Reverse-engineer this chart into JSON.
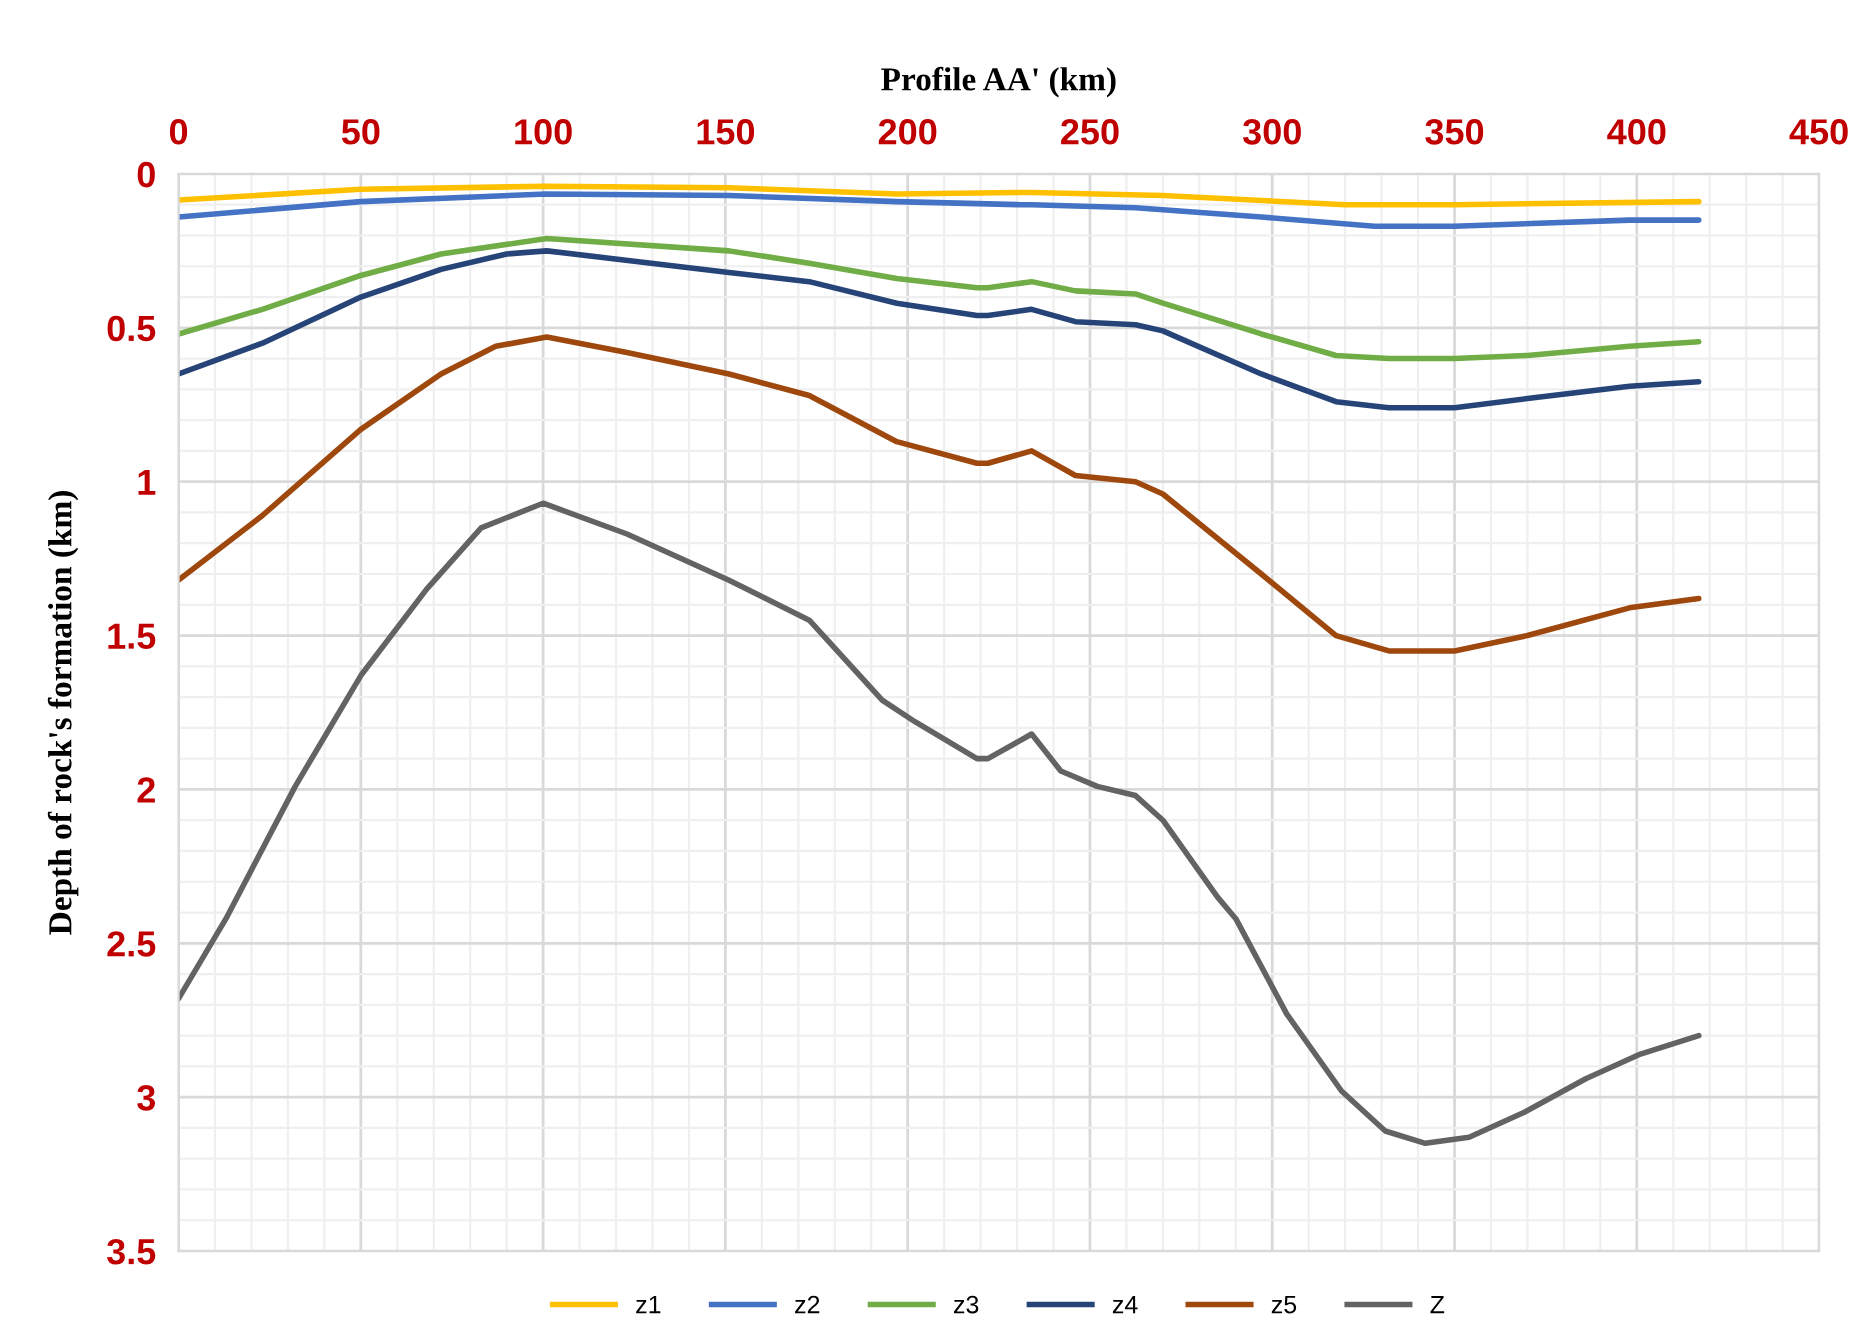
{
  "chart_data": {
    "type": "line",
    "xlabel": "Profile AA' (km)",
    "ylabel": "Depth of rock's formation (km)",
    "xlim": [
      0,
      450
    ],
    "xticks": [
      0,
      50,
      100,
      150,
      200,
      250,
      300,
      350,
      400,
      450
    ],
    "ylim": [
      3.5,
      0
    ],
    "yticks": [
      0,
      0.5,
      1,
      1.5,
      2,
      2.5,
      3,
      3.5
    ],
    "grid": true,
    "legend": "bottom",
    "marker": "none",
    "line_style": "solid",
    "series": [
      {
        "name": "z1",
        "color": "#ffc000",
        "x": [
          0,
          50,
          101,
          151,
          197,
          234,
          270,
          320,
          350,
          417
        ],
        "values": [
          0.085,
          0.05,
          0.04,
          0.045,
          0.065,
          0.06,
          0.07,
          0.1,
          0.1,
          0.09
        ]
      },
      {
        "name": "z2",
        "color": "#4472c4",
        "x": [
          0,
          50,
          101,
          151,
          197,
          231,
          234,
          262.5,
          297,
          328,
          350,
          398,
          417
        ],
        "values": [
          0.14,
          0.09,
          0.065,
          0.07,
          0.09,
          0.1,
          0.1,
          0.11,
          0.14,
          0.17,
          0.17,
          0.15,
          0.15
        ]
      },
      {
        "name": "z3",
        "color": "#70ad47",
        "x": [
          0,
          23,
          50,
          72,
          101,
          151,
          173,
          197,
          219,
          222,
          234,
          246,
          262.5,
          270,
          297,
          317.5,
          332,
          350,
          370,
          398,
          417
        ],
        "values": [
          0.52,
          0.44,
          0.33,
          0.26,
          0.21,
          0.25,
          0.29,
          0.34,
          0.37,
          0.37,
          0.35,
          0.38,
          0.39,
          0.42,
          0.52,
          0.59,
          0.6,
          0.6,
          0.59,
          0.56,
          0.545
        ]
      },
      {
        "name": "z4",
        "color": "#264478",
        "x": [
          0,
          23,
          50,
          72,
          90,
          101,
          151,
          173,
          197,
          219,
          222,
          234,
          246,
          262.5,
          270,
          297,
          317.5,
          332,
          350,
          370,
          398,
          417
        ],
        "values": [
          0.65,
          0.55,
          0.4,
          0.31,
          0.26,
          0.25,
          0.32,
          0.35,
          0.42,
          0.46,
          0.46,
          0.44,
          0.48,
          0.49,
          0.51,
          0.65,
          0.74,
          0.76,
          0.76,
          0.73,
          0.69,
          0.675
        ]
      },
      {
        "name": "z5",
        "color": "#9e480e",
        "x": [
          0,
          23,
          50,
          72,
          87,
          101,
          123,
          151,
          173,
          197,
          219,
          222,
          234,
          246,
          262.5,
          270,
          297,
          317.5,
          332,
          350,
          370,
          398,
          417
        ],
        "values": [
          1.32,
          1.11,
          0.83,
          0.65,
          0.56,
          0.53,
          0.58,
          0.65,
          0.72,
          0.87,
          0.94,
          0.94,
          0.9,
          0.98,
          1.0,
          1.04,
          1.3,
          1.5,
          1.55,
          1.55,
          1.5,
          1.41,
          1.38
        ]
      },
      {
        "name": "Z",
        "color": "#636363",
        "x": [
          0,
          13,
          32,
          50,
          68,
          83,
          100,
          123,
          151,
          173,
          193,
          202,
          219,
          222,
          234,
          242,
          252,
          262.5,
          270,
          285,
          290,
          304,
          319,
          331,
          342,
          354,
          369,
          386,
          401,
          417
        ],
        "values": [
          2.68,
          2.42,
          1.99,
          1.63,
          1.35,
          1.15,
          1.07,
          1.17,
          1.32,
          1.45,
          1.71,
          1.78,
          1.9,
          1.9,
          1.82,
          1.94,
          1.99,
          2.02,
          2.1,
          2.35,
          2.42,
          2.73,
          2.98,
          3.11,
          3.15,
          3.13,
          3.05,
          2.94,
          2.86,
          2.8
        ]
      }
    ]
  }
}
